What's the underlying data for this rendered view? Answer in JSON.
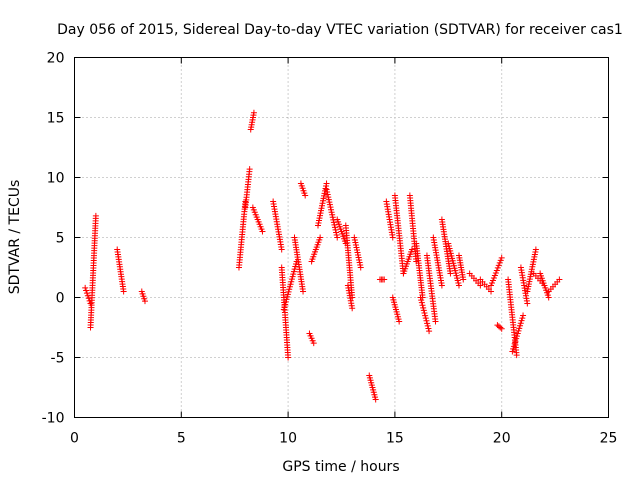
{
  "chart_data": {
    "type": "scatter",
    "title": "Day 056 of 2015, Sidereal Day-to-day VTEC variation (SDTVAR) for receiver cas1",
    "xlabel": "GPS time / hours",
    "ylabel": "SDTVAR / TECUs",
    "xlim": [
      0,
      25
    ],
    "ylim": [
      -10,
      20
    ],
    "xticks": [
      0,
      5,
      10,
      15,
      20,
      25
    ],
    "yticks": [
      -10,
      -5,
      0,
      5,
      10,
      15,
      20
    ],
    "grid": true,
    "marker": "+",
    "color": "#ff0000",
    "series": [
      {
        "name": "SDTVAR",
        "segments": [
          {
            "x": [
              0.5,
              0.75
            ],
            "y": [
              0.8,
              -0.5
            ]
          },
          {
            "x": [
              0.75,
              1.0
            ],
            "y": [
              -2.5,
              6.8
            ]
          },
          {
            "x": [
              2.0,
              2.3
            ],
            "y": [
              4.0,
              0.5
            ]
          },
          {
            "x": [
              3.15,
              3.3
            ],
            "y": [
              0.5,
              -0.3
            ]
          },
          {
            "x": [
              7.7,
              8.0
            ],
            "y": [
              2.5,
              8.0
            ]
          },
          {
            "x": [
              8.0,
              8.2
            ],
            "y": [
              7.5,
              10.7
            ]
          },
          {
            "x": [
              8.25,
              8.4
            ],
            "y": [
              14.0,
              15.4
            ]
          },
          {
            "x": [
              8.35,
              8.8
            ],
            "y": [
              7.5,
              5.5
            ]
          },
          {
            "x": [
              9.3,
              9.7
            ],
            "y": [
              8.0,
              4.0
            ]
          },
          {
            "x": [
              9.7,
              10.0
            ],
            "y": [
              2.5,
              -5.0
            ]
          },
          {
            "x": [
              9.8,
              10.4
            ],
            "y": [
              -1.0,
              3.0
            ]
          },
          {
            "x": [
              10.3,
              10.7
            ],
            "y": [
              5.0,
              0.5
            ]
          },
          {
            "x": [
              10.6,
              10.8
            ],
            "y": [
              9.5,
              8.5
            ]
          },
          {
            "x": [
              11.0,
              11.2
            ],
            "y": [
              -3.0,
              -3.8
            ]
          },
          {
            "x": [
              11.1,
              11.5
            ],
            "y": [
              3.0,
              5.0
            ]
          },
          {
            "x": [
              11.4,
              11.8
            ],
            "y": [
              6.0,
              9.5
            ]
          },
          {
            "x": [
              11.8,
              12.3
            ],
            "y": [
              9.0,
              5.0
            ]
          },
          {
            "x": [
              12.3,
              12.7
            ],
            "y": [
              6.5,
              4.5
            ]
          },
          {
            "x": [
              12.7,
              13.0
            ],
            "y": [
              6.0,
              0.0
            ]
          },
          {
            "x": [
              12.8,
              13.0
            ],
            "y": [
              1.0,
              -0.9
            ]
          },
          {
            "x": [
              13.1,
              13.4
            ],
            "y": [
              5.0,
              2.5
            ]
          },
          {
            "x": [
              13.8,
              14.1
            ],
            "y": [
              -6.5,
              -8.5
            ]
          },
          {
            "x": [
              14.3,
              14.5
            ],
            "y": [
              1.5,
              1.5
            ]
          },
          {
            "x": [
              14.6,
              14.9
            ],
            "y": [
              8.0,
              5.0
            ]
          },
          {
            "x": [
              15.0,
              15.4
            ],
            "y": [
              8.5,
              2.0
            ]
          },
          {
            "x": [
              14.9,
              15.2
            ],
            "y": [
              0.0,
              -2.0
            ]
          },
          {
            "x": [
              15.4,
              15.8
            ],
            "y": [
              2.0,
              4.0
            ]
          },
          {
            "x": [
              15.7,
              16.0
            ],
            "y": [
              8.5,
              3.0
            ]
          },
          {
            "x": [
              16.0,
              16.3
            ],
            "y": [
              4.5,
              0.0
            ]
          },
          {
            "x": [
              16.2,
              16.6
            ],
            "y": [
              0.0,
              -2.8
            ]
          },
          {
            "x": [
              16.5,
              16.9
            ],
            "y": [
              3.5,
              -2.0
            ]
          },
          {
            "x": [
              16.8,
              17.2
            ],
            "y": [
              5.0,
              1.0
            ]
          },
          {
            "x": [
              17.2,
              17.6
            ],
            "y": [
              6.5,
              2.0
            ]
          },
          {
            "x": [
              17.5,
              18.0
            ],
            "y": [
              4.5,
              1.0
            ]
          },
          {
            "x": [
              18.0,
              18.2
            ],
            "y": [
              3.5,
              1.5
            ]
          },
          {
            "x": [
              18.5,
              19.0
            ],
            "y": [
              2.0,
              1.0
            ]
          },
          {
            "x": [
              19.0,
              19.5
            ],
            "y": [
              1.5,
              0.5
            ]
          },
          {
            "x": [
              19.5,
              20.0
            ],
            "y": [
              1.0,
              3.3
            ]
          },
          {
            "x": [
              19.8,
              20.0
            ],
            "y": [
              -2.3,
              -2.6
            ]
          },
          {
            "x": [
              20.3,
              20.7
            ],
            "y": [
              1.5,
              -4.8
            ]
          },
          {
            "x": [
              20.5,
              21.0
            ],
            "y": [
              -4.5,
              -1.5
            ]
          },
          {
            "x": [
              20.9,
              21.2
            ],
            "y": [
              2.5,
              -0.5
            ]
          },
          {
            "x": [
              21.2,
              21.6
            ],
            "y": [
              0.5,
              4.0
            ]
          },
          {
            "x": [
              21.5,
              22.0
            ],
            "y": [
              2.0,
              1.0
            ]
          },
          {
            "x": [
              21.8,
              22.2
            ],
            "y": [
              2.0,
              0.0
            ]
          },
          {
            "x": [
              22.2,
              22.7
            ],
            "y": [
              0.5,
              1.5
            ]
          }
        ]
      }
    ]
  }
}
